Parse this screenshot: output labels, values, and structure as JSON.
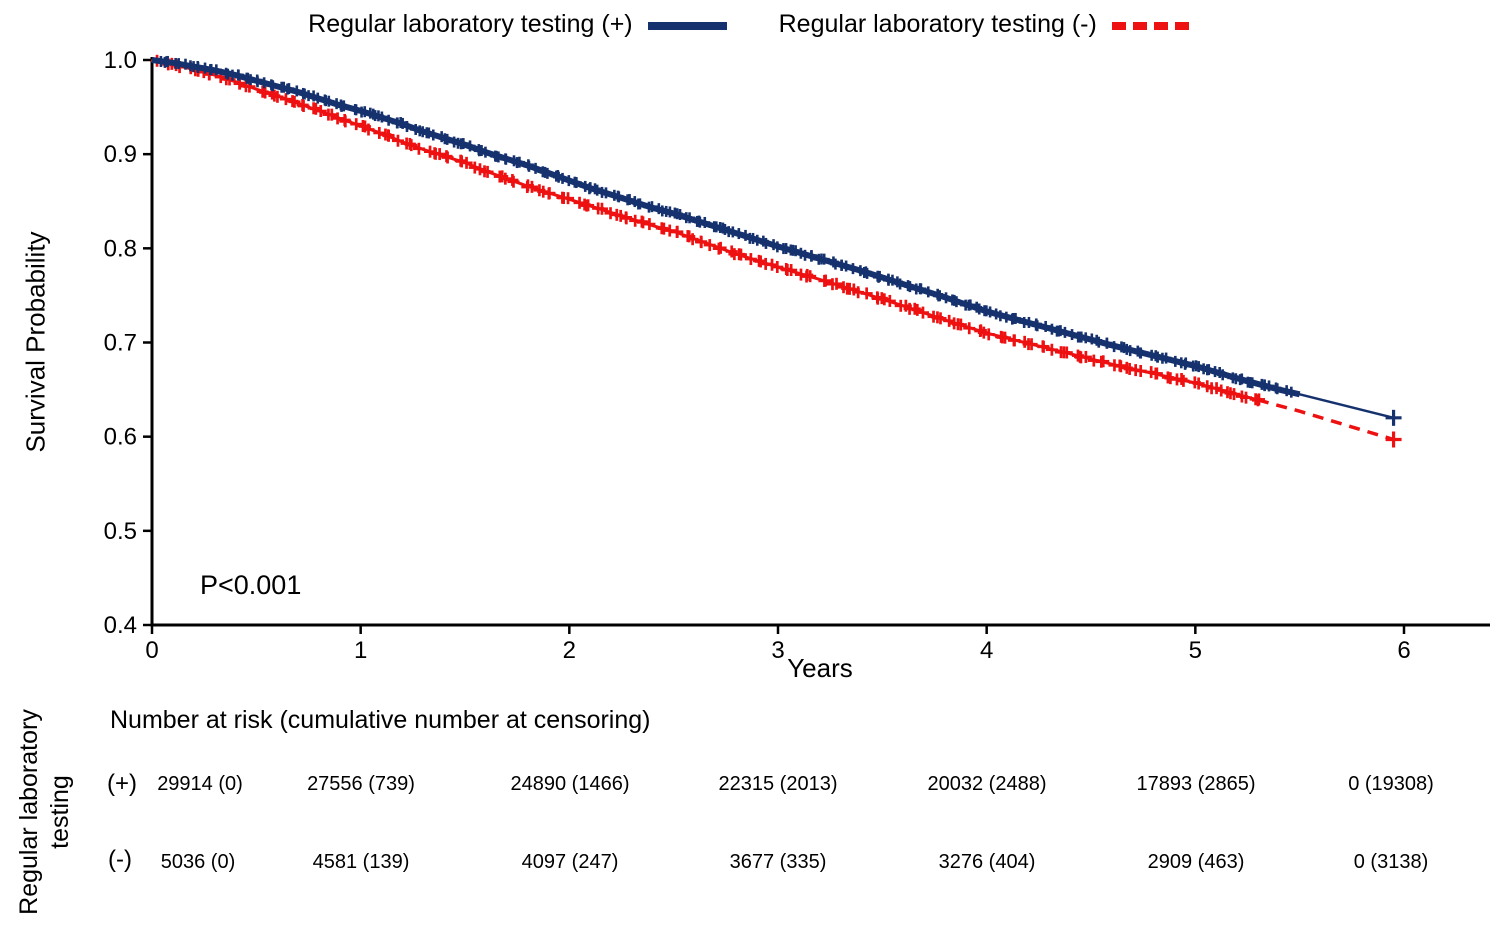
{
  "legend": {
    "items": [
      {
        "label": "Regular laboratory testing (+)",
        "color": "#16326e",
        "style": "solid"
      },
      {
        "label": "Regular laboratory testing (-)",
        "color": "#ee1111",
        "style": "dashed"
      }
    ]
  },
  "chart_data": {
    "type": "line",
    "subtype": "kaplan-meier-survival",
    "title": "",
    "xlabel": "Years",
    "ylabel": "Survival Probability",
    "annotation": "P<0.001",
    "xlim": [
      0,
      6.45
    ],
    "ylim": [
      0.4,
      1.0
    ],
    "xticks": [
      "0",
      "1",
      "2",
      "3",
      "4",
      "5",
      "6"
    ],
    "yticks": [
      "1.0",
      "0.9",
      "0.8",
      "0.7",
      "0.6",
      "0.5",
      "0.4"
    ],
    "grid": false,
    "legend_position": "top",
    "series": [
      {
        "name": "Regular laboratory testing (+)",
        "color": "#16326e",
        "line_style": "solid",
        "censor_marks": true,
        "censor_mark_end": [
          5.95,
          0.62
        ],
        "points": [
          [
            0,
            1.0
          ],
          [
            0.1,
            0.997
          ],
          [
            0.2,
            0.993
          ],
          [
            0.3,
            0.989
          ],
          [
            0.4,
            0.984
          ],
          [
            0.5,
            0.978
          ],
          [
            0.6,
            0.972
          ],
          [
            0.7,
            0.966
          ],
          [
            0.8,
            0.959
          ],
          [
            0.9,
            0.952
          ],
          [
            1.0,
            0.946
          ],
          [
            1.1,
            0.939
          ],
          [
            1.2,
            0.932
          ],
          [
            1.3,
            0.924
          ],
          [
            1.4,
            0.917
          ],
          [
            1.5,
            0.91
          ],
          [
            1.6,
            0.902
          ],
          [
            1.7,
            0.895
          ],
          [
            1.8,
            0.888
          ],
          [
            1.9,
            0.88
          ],
          [
            2.0,
            0.872
          ],
          [
            2.1,
            0.864
          ],
          [
            2.2,
            0.857
          ],
          [
            2.3,
            0.85
          ],
          [
            2.4,
            0.843
          ],
          [
            2.5,
            0.837
          ],
          [
            2.6,
            0.83
          ],
          [
            2.7,
            0.823
          ],
          [
            2.8,
            0.816
          ],
          [
            2.9,
            0.809
          ],
          [
            3.0,
            0.802
          ],
          [
            3.2,
            0.789
          ],
          [
            3.4,
            0.776
          ],
          [
            3.6,
            0.762
          ],
          [
            3.8,
            0.748
          ],
          [
            4.0,
            0.733
          ],
          [
            4.2,
            0.721
          ],
          [
            4.4,
            0.709
          ],
          [
            4.6,
            0.697
          ],
          [
            4.8,
            0.686
          ],
          [
            5.0,
            0.675
          ],
          [
            5.2,
            0.662
          ],
          [
            5.4,
            0.65
          ],
          [
            5.5,
            0.645
          ],
          [
            5.95,
            0.62
          ]
        ]
      },
      {
        "name": "Regular laboratory testing (-)",
        "color": "#ee1111",
        "line_style": "dashed",
        "censor_marks": true,
        "censor_mark_end": [
          5.95,
          0.597
        ],
        "points": [
          [
            0,
            1.0
          ],
          [
            0.1,
            0.995
          ],
          [
            0.2,
            0.99
          ],
          [
            0.3,
            0.984
          ],
          [
            0.4,
            0.977
          ],
          [
            0.5,
            0.969
          ],
          [
            0.6,
            0.962
          ],
          [
            0.7,
            0.954
          ],
          [
            0.8,
            0.946
          ],
          [
            0.9,
            0.938
          ],
          [
            1.0,
            0.93
          ],
          [
            1.1,
            0.922
          ],
          [
            1.2,
            0.913
          ],
          [
            1.3,
            0.905
          ],
          [
            1.4,
            0.898
          ],
          [
            1.5,
            0.891
          ],
          [
            1.6,
            0.882
          ],
          [
            1.7,
            0.874
          ],
          [
            1.8,
            0.866
          ],
          [
            1.9,
            0.859
          ],
          [
            2.0,
            0.852
          ],
          [
            2.1,
            0.845
          ],
          [
            2.2,
            0.838
          ],
          [
            2.3,
            0.831
          ],
          [
            2.4,
            0.824
          ],
          [
            2.5,
            0.818
          ],
          [
            2.6,
            0.81
          ],
          [
            2.7,
            0.802
          ],
          [
            2.8,
            0.794
          ],
          [
            2.9,
            0.787
          ],
          [
            3.0,
            0.78
          ],
          [
            3.2,
            0.767
          ],
          [
            3.4,
            0.753
          ],
          [
            3.6,
            0.739
          ],
          [
            3.8,
            0.724
          ],
          [
            4.0,
            0.71
          ],
          [
            4.2,
            0.699
          ],
          [
            4.4,
            0.688
          ],
          [
            4.6,
            0.677
          ],
          [
            4.8,
            0.667
          ],
          [
            5.0,
            0.657
          ],
          [
            5.2,
            0.645
          ],
          [
            5.3,
            0.639
          ],
          [
            5.5,
            0.627
          ],
          [
            5.95,
            0.597
          ]
        ]
      }
    ]
  },
  "risk_table": {
    "title": "Number at risk (cumulative number at censoring)",
    "group_label_line1": "Regular laboratory",
    "group_label_line2": "testing",
    "rows": [
      {
        "marker": "(+)",
        "values": [
          "29914 (0)",
          "27556 (739)",
          "24890 (1466)",
          "22315 (2013)",
          "20032 (2488)",
          "17893 (2865)",
          "0 (19308)"
        ]
      },
      {
        "marker": "(-)",
        "values": [
          "5036 (0)",
          "4581 (139)",
          "4097 (247)",
          "3677 (335)",
          "3276 (404)",
          "2909 (463)",
          "0 (3138)"
        ]
      }
    ]
  }
}
